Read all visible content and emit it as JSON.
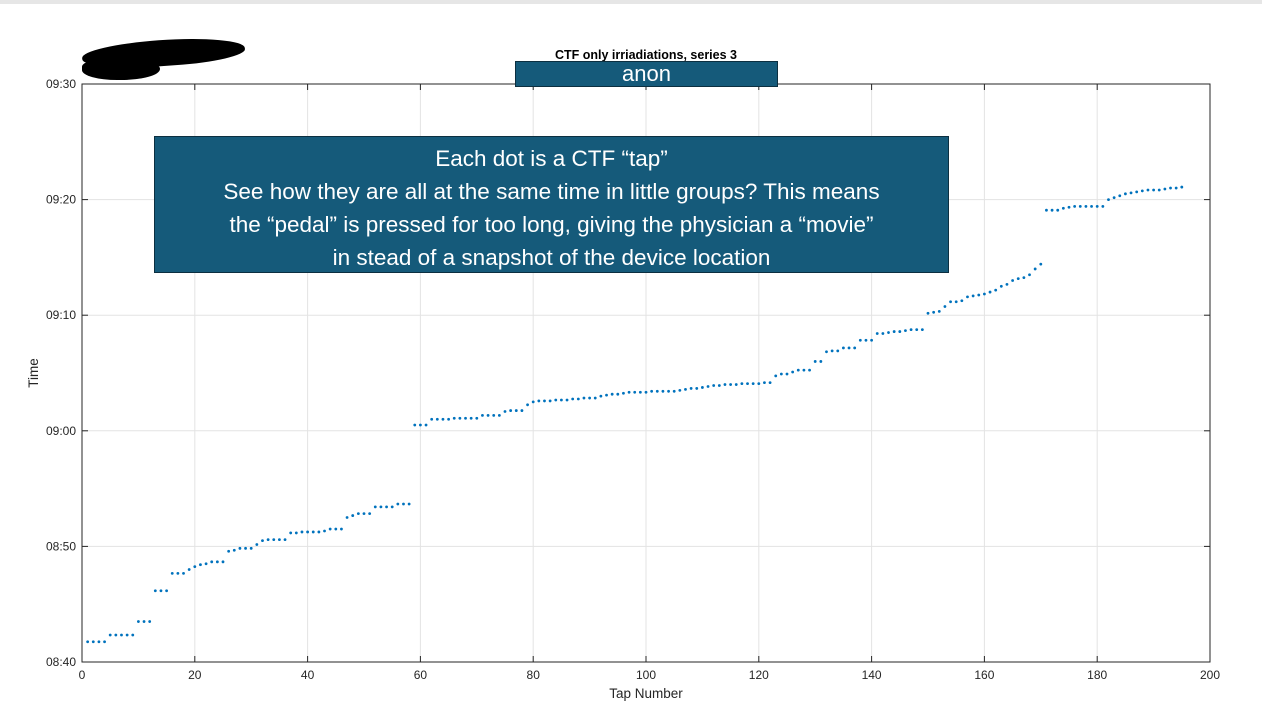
{
  "annotation": {
    "anon_label": "anon",
    "note_lines": [
      "Each dot is a CTF “tap”",
      "See how they are all at the same time in little groups? This means",
      "the “pedal” is pressed for too long, giving the physician a “movie”",
      "in stead of a snapshot of the device location"
    ],
    "box_color": "#155a7a"
  },
  "chart_data": {
    "type": "scatter",
    "title": "CTF only irriadiations, series 3",
    "xlabel": "Tap Number",
    "ylabel": "Time",
    "xlim": [
      0,
      200
    ],
    "ylim": [
      "08:40",
      "09:30"
    ],
    "x_ticks": [
      "0",
      "20",
      "40",
      "60",
      "80",
      "100",
      "120",
      "140",
      "160",
      "180",
      "200"
    ],
    "y_ticks": [
      "08:40",
      "08:50",
      "09:00",
      "09:10",
      "09:20",
      "09:30"
    ],
    "grid": true,
    "marker_color": "#0072bd",
    "x": [
      1,
      2,
      3,
      4,
      5,
      6,
      7,
      8,
      9,
      10,
      11,
      12,
      13,
      14,
      15,
      16,
      17,
      18,
      19,
      20,
      21,
      22,
      23,
      24,
      25,
      26,
      27,
      28,
      29,
      30,
      31,
      32,
      33,
      34,
      35,
      36,
      37,
      38,
      39,
      40,
      41,
      42,
      43,
      44,
      45,
      46,
      47,
      48,
      49,
      50,
      51,
      52,
      53,
      54,
      55,
      56,
      57,
      58,
      59,
      60,
      61,
      62,
      63,
      64,
      65,
      66,
      67,
      68,
      69,
      70,
      71,
      72,
      73,
      74,
      75,
      76,
      77,
      78,
      79,
      80,
      81,
      82,
      83,
      84,
      85,
      86,
      87,
      88,
      89,
      90,
      91,
      92,
      93,
      94,
      95,
      96,
      97,
      98,
      99,
      100,
      101,
      102,
      103,
      104,
      105,
      106,
      107,
      108,
      109,
      110,
      111,
      112,
      113,
      114,
      115,
      116,
      117,
      118,
      119,
      120,
      121,
      122,
      123,
      124,
      125,
      126,
      127,
      128,
      129,
      130,
      131,
      132,
      133,
      134,
      135,
      136,
      137,
      138,
      139,
      140,
      141,
      142,
      143,
      144,
      145,
      146,
      147,
      148,
      149,
      150,
      151,
      152,
      153,
      154,
      155,
      156,
      157,
      158,
      159,
      160,
      161,
      162,
      163,
      164,
      165,
      166,
      167,
      168,
      169,
      170,
      171,
      172,
      173,
      174,
      175,
      176,
      177,
      178,
      179,
      180,
      181,
      182,
      183,
      184,
      185,
      186,
      187,
      188,
      189,
      190,
      191,
      192,
      193,
      194,
      195
    ],
    "y": [
      "08:41:45",
      "08:41:45",
      "08:41:45",
      "08:41:45",
      "08:42:20",
      "08:42:20",
      "08:42:20",
      "08:42:20",
      "08:42:20",
      "08:43:30",
      "08:43:30",
      "08:43:30",
      "08:46:10",
      "08:46:10",
      "08:46:10",
      "08:47:40",
      "08:47:40",
      "08:47:40",
      "08:48:00",
      "08:48:15",
      "08:48:25",
      "08:48:30",
      "08:48:40",
      "08:48:40",
      "08:48:40",
      "08:49:35",
      "08:49:40",
      "08:49:50",
      "08:49:50",
      "08:49:50",
      "08:50:10",
      "08:50:30",
      "08:50:35",
      "08:50:35",
      "08:50:35",
      "08:50:35",
      "08:51:10",
      "08:51:10",
      "08:51:15",
      "08:51:15",
      "08:51:15",
      "08:51:15",
      "08:51:20",
      "08:51:30",
      "08:51:30",
      "08:51:30",
      "08:52:30",
      "08:52:40",
      "08:52:50",
      "08:52:50",
      "08:52:50",
      "08:53:25",
      "08:53:25",
      "08:53:25",
      "08:53:25",
      "08:53:40",
      "08:53:40",
      "08:53:40",
      "09:00:30",
      "09:00:30",
      "09:00:30",
      "09:01:00",
      "09:01:00",
      "09:01:00",
      "09:01:00",
      "09:01:05",
      "09:01:05",
      "09:01:05",
      "09:01:05",
      "09:01:05",
      "09:01:20",
      "09:01:20",
      "09:01:20",
      "09:01:20",
      "09:01:40",
      "09:01:45",
      "09:01:45",
      "09:01:45",
      "09:02:15",
      "09:02:30",
      "09:02:35",
      "09:02:35",
      "09:02:35",
      "09:02:40",
      "09:02:40",
      "09:02:40",
      "09:02:45",
      "09:02:45",
      "09:02:50",
      "09:02:50",
      "09:02:50",
      "09:03:00",
      "09:03:05",
      "09:03:10",
      "09:03:10",
      "09:03:15",
      "09:03:20",
      "09:03:20",
      "09:03:20",
      "09:03:20",
      "09:03:25",
      "09:03:25",
      "09:03:25",
      "09:03:25",
      "09:03:25",
      "09:03:30",
      "09:03:35",
      "09:03:40",
      "09:03:40",
      "09:03:45",
      "09:03:50",
      "09:03:55",
      "09:03:55",
      "09:04:00",
      "09:04:00",
      "09:04:00",
      "09:04:05",
      "09:04:05",
      "09:04:05",
      "09:04:05",
      "09:04:10",
      "09:04:10",
      "09:04:45",
      "09:04:55",
      "09:04:55",
      "09:05:05",
      "09:05:15",
      "09:05:15",
      "09:05:15",
      "09:06:00",
      "09:06:00",
      "09:06:50",
      "09:06:55",
      "09:06:55",
      "09:07:10",
      "09:07:10",
      "09:07:10",
      "09:07:50",
      "09:07:50",
      "09:07:50",
      "09:08:25",
      "09:08:25",
      "09:08:30",
      "09:08:35",
      "09:08:35",
      "09:08:40",
      "09:08:45",
      "09:08:45",
      "09:08:45",
      "09:10:10",
      "09:10:15",
      "09:10:20",
      "09:10:45",
      "09:11:10",
      "09:11:10",
      "09:11:15",
      "09:11:35",
      "09:11:40",
      "09:11:45",
      "09:11:50",
      "09:12:00",
      "09:12:10",
      "09:12:30",
      "09:12:40",
      "09:13:00",
      "09:13:10",
      "09:13:15",
      "09:13:30",
      "09:14:00",
      "09:14:25",
      "09:19:05",
      "09:19:05",
      "09:19:05",
      "09:19:15",
      "09:19:20",
      "09:19:25",
      "09:19:25",
      "09:19:25",
      "09:19:25",
      "09:19:25",
      "09:19:25",
      "09:20:00",
      "09:20:10",
      "09:20:20",
      "09:20:30",
      "09:20:35",
      "09:20:40",
      "09:20:45",
      "09:20:50",
      "09:20:50",
      "09:20:50",
      "09:20:55",
      "09:21:00",
      "09:21:00",
      "09:21:05"
    ]
  }
}
